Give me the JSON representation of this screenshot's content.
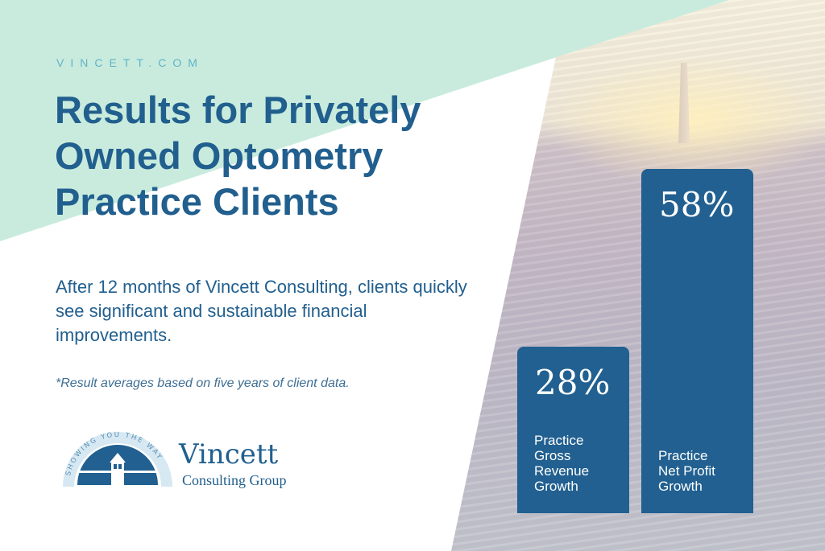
{
  "header": {
    "site": "VINCETT.COM",
    "title": "Results for Privately Owned Optometry Practice Clients"
  },
  "body": {
    "subtitle": "After 12 months of Vincett Consulting, clients quickly see significant and sustainable financial improvements.",
    "footnote": "*Result averages based on five years of client data."
  },
  "logo": {
    "tagline": "SHOWING YOU THE WAY",
    "name": "Vincett",
    "subname": "Consulting Group"
  },
  "colors": {
    "brand": "#216090",
    "mint": "#c9ebdd",
    "accent": "#5fb4c9"
  },
  "chart_data": {
    "type": "bar",
    "categories": [
      "Practice Gross Revenue Growth",
      "Practice Net Profit Growth"
    ],
    "values": [
      28,
      58
    ],
    "value_labels": [
      "28%",
      "58%"
    ],
    "unit": "%"
  }
}
